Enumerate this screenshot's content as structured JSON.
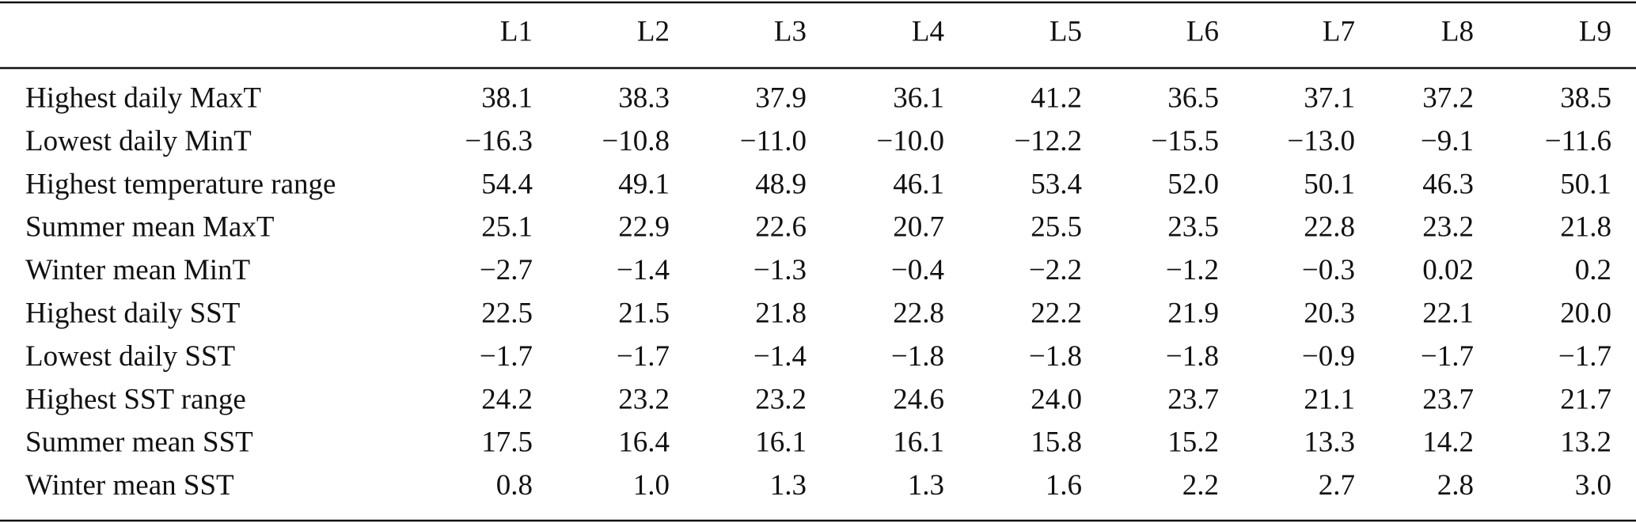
{
  "table": {
    "columns": [
      "L1",
      "L2",
      "L3",
      "L4",
      "L5",
      "L6",
      "L7",
      "L8",
      "L9"
    ],
    "rows": [
      {
        "label": "Highest daily MaxT",
        "cells": [
          "38.1",
          "38.3",
          "37.9",
          "36.1",
          "41.2",
          "36.5",
          "37.1",
          "37.2",
          "38.5"
        ]
      },
      {
        "label": "Lowest daily MinT",
        "cells": [
          "−16.3",
          "−10.8",
          "−11.0",
          "−10.0",
          "−12.2",
          "−15.5",
          "−13.0",
          "−9.1",
          "−11.6"
        ]
      },
      {
        "label": "Highest temperature range",
        "cells": [
          "54.4",
          "49.1",
          "48.9",
          "46.1",
          "53.4",
          "52.0",
          "50.1",
          "46.3",
          "50.1"
        ]
      },
      {
        "label": "Summer mean MaxT",
        "cells": [
          "25.1",
          "22.9",
          "22.6",
          "20.7",
          "25.5",
          "23.5",
          "22.8",
          "23.2",
          "21.8"
        ]
      },
      {
        "label": "Winter mean MinT",
        "cells": [
          "−2.7",
          "−1.4",
          "−1.3",
          "−0.4",
          "−2.2",
          "−1.2",
          "−0.3",
          "0.02",
          "0.2"
        ]
      },
      {
        "label": "Highest daily SST",
        "cells": [
          "22.5",
          "21.5",
          "21.8",
          "22.8",
          "22.2",
          "21.9",
          "20.3",
          "22.1",
          "20.0"
        ]
      },
      {
        "label": "Lowest daily SST",
        "cells": [
          "−1.7",
          "−1.7",
          "−1.4",
          "−1.8",
          "−1.8",
          "−1.8",
          "−0.9",
          "−1.7",
          "−1.7"
        ]
      },
      {
        "label": "Highest SST range",
        "cells": [
          "24.2",
          "23.2",
          "23.2",
          "24.6",
          "24.0",
          "23.7",
          "21.1",
          "23.7",
          "21.7"
        ]
      },
      {
        "label": "Summer mean SST",
        "cells": [
          "17.5",
          "16.4",
          "16.1",
          "16.1",
          "15.8",
          "15.2",
          "13.3",
          "14.2",
          "13.2"
        ]
      },
      {
        "label": "Winter mean SST",
        "cells": [
          "0.8",
          "1.0",
          "1.3",
          "1.3",
          "1.6",
          "2.2",
          "2.7",
          "2.8",
          "3.0"
        ]
      }
    ]
  }
}
